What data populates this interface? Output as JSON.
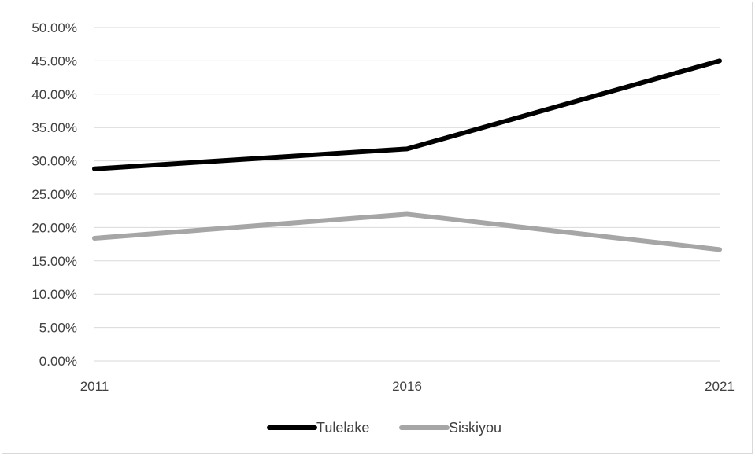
{
  "chart_data": {
    "type": "line",
    "title": "",
    "xlabel": "",
    "ylabel": "",
    "x": [
      "2011",
      "2016",
      "2021"
    ],
    "ylim": [
      0,
      0.5
    ],
    "yticks": [
      "0.00%",
      "5.00%",
      "10.00%",
      "15.00%",
      "20.00%",
      "25.00%",
      "30.00%",
      "35.00%",
      "40.00%",
      "45.00%",
      "50.00%"
    ],
    "grid": true,
    "legend": "bottom",
    "series": [
      {
        "name": "Tulelake",
        "values": [
          0.288,
          0.318,
          0.45
        ],
        "color": "#000000"
      },
      {
        "name": "Siskiyou",
        "values": [
          0.184,
          0.22,
          0.167
        ],
        "color": "#a6a6a6"
      }
    ]
  }
}
